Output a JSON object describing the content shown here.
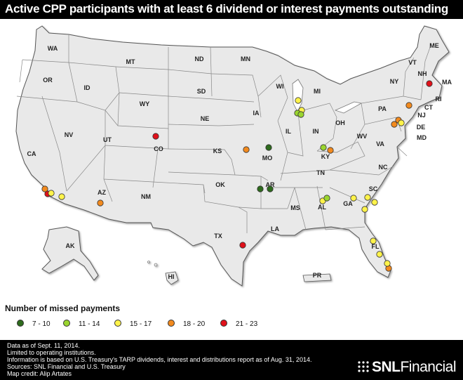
{
  "title": "Active CPP participants with at least 6 dividend or interest payments outstanding",
  "legend": {
    "title": "Number of missed payments",
    "items": [
      {
        "label": "7 - 10",
        "color": "#2e6b1d"
      },
      {
        "label": "11 - 14",
        "color": "#9ad52f"
      },
      {
        "label": "15 - 17",
        "color": "#fff34a"
      },
      {
        "label": "18 - 20",
        "color": "#f28a1e"
      },
      {
        "label": "21 - 23",
        "color": "#e0111a"
      }
    ]
  },
  "state_labels": [
    "WA",
    "OR",
    "CA",
    "NV",
    "ID",
    "MT",
    "WY",
    "UT",
    "AZ",
    "CO",
    "NM",
    "ND",
    "SD",
    "NE",
    "KS",
    "OK",
    "TX",
    "MN",
    "IA",
    "MO",
    "AR",
    "LA",
    "WI",
    "IL",
    "MI",
    "IN",
    "OH",
    "KY",
    "TN",
    "MS",
    "AL",
    "GA",
    "FL",
    "SC",
    "NC",
    "VA",
    "WV",
    "PA",
    "NY",
    "VT",
    "NH",
    "ME",
    "MA",
    "RI",
    "CT",
    "NJ",
    "DE",
    "MD",
    "AK",
    "HI",
    "PR"
  ],
  "markers": [
    {
      "category": "21 - 23",
      "state": "CO"
    },
    {
      "category": "21 - 23",
      "state": "CA"
    },
    {
      "category": "21 - 23",
      "state": "TX"
    },
    {
      "category": "21 - 23",
      "state": "MA"
    },
    {
      "category": "18 - 20",
      "state": "AZ"
    },
    {
      "category": "18 - 20",
      "state": "KS"
    },
    {
      "category": "18 - 20",
      "state": "KY"
    },
    {
      "category": "18 - 20",
      "state": "NJ"
    },
    {
      "category": "18 - 20",
      "state": "MD"
    },
    {
      "category": "18 - 20",
      "state": "MD"
    },
    {
      "category": "18 - 20",
      "state": "FL"
    },
    {
      "category": "18 - 20",
      "state": "CA"
    },
    {
      "category": "15 - 17",
      "state": "CA"
    },
    {
      "category": "15 - 17",
      "state": "CA"
    },
    {
      "category": "15 - 17",
      "state": "WI"
    },
    {
      "category": "15 - 17",
      "state": "IL"
    },
    {
      "category": "15 - 17",
      "state": "AL"
    },
    {
      "category": "15 - 17",
      "state": "GA"
    },
    {
      "category": "15 - 17",
      "state": "GA"
    },
    {
      "category": "15 - 17",
      "state": "SC"
    },
    {
      "category": "15 - 17",
      "state": "SC"
    },
    {
      "category": "15 - 17",
      "state": "FL"
    },
    {
      "category": "15 - 17",
      "state": "FL"
    },
    {
      "category": "15 - 17",
      "state": "FL"
    },
    {
      "category": "15 - 17",
      "state": "MD"
    },
    {
      "category": "11 - 14",
      "state": "IL"
    },
    {
      "category": "11 - 14",
      "state": "IL"
    },
    {
      "category": "11 - 14",
      "state": "KY"
    },
    {
      "category": "11 - 14",
      "state": "AL"
    },
    {
      "category": "7 - 10",
      "state": "MO"
    },
    {
      "category": "7 - 10",
      "state": "AR"
    },
    {
      "category": "7 - 10",
      "state": "AR"
    }
  ],
  "footer": {
    "lines": [
      "Data as of Sept. 11, 2014.",
      "Limited to operating institutions.",
      "Information is based on U.S. Treasury's TARP dividends, interest and distributions report as of Aug. 31, 2014.",
      "Sources: SNL Financial and U.S. Treasury",
      "Map credit: Alip Artates"
    ],
    "brand_bold": "SNL",
    "brand_rest": "Financial"
  }
}
